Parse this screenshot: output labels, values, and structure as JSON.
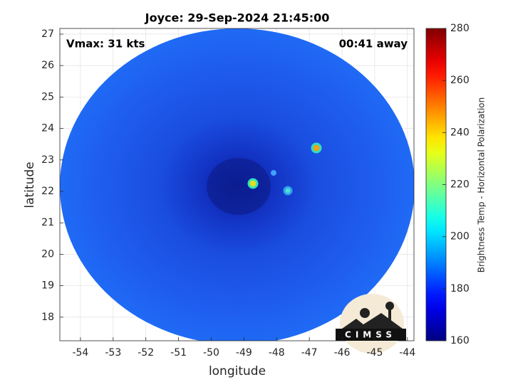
{
  "chart_data": {
    "type": "image",
    "title": "Joyce: 29-Sep-2024 21:45:00",
    "annotations": [
      "Vmax: 31 kts",
      "00:41 away"
    ],
    "xlabel": "longitude",
    "ylabel": "latitude",
    "xlim": [
      -54.63,
      -43.8
    ],
    "xticks": [
      -54,
      -53,
      -52,
      -51,
      -50,
      -49,
      -48,
      -47,
      -46,
      -45,
      -44
    ],
    "ylim": [
      17.25,
      27.18
    ],
    "yticks": [
      18,
      19,
      20,
      21,
      22,
      23,
      24,
      25,
      26,
      27
    ],
    "grid": true,
    "colorbar": {
      "label": "Brightness Temp - Horizontal Polarization",
      "colormap": "jet",
      "lim": [
        160,
        280
      ],
      "ticks": [
        160,
        180,
        200,
        220,
        240,
        260,
        280
      ]
    },
    "logo_text": "CIMSS"
  }
}
